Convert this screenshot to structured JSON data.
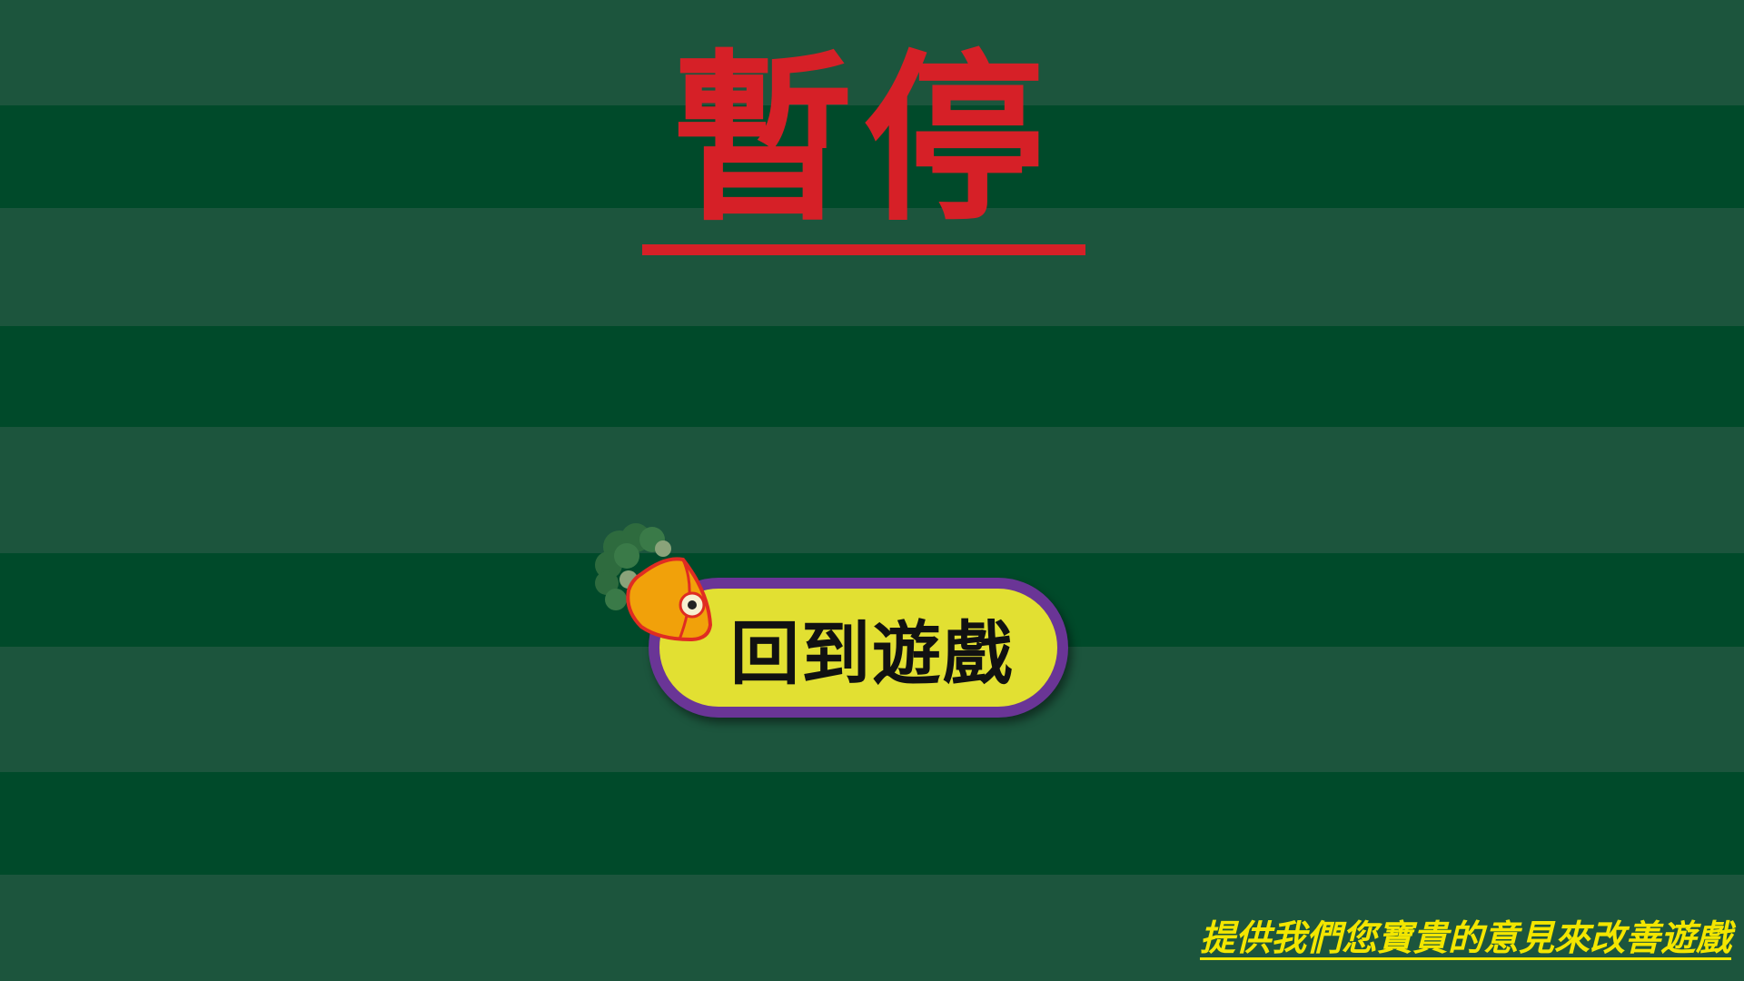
{
  "pause_screen": {
    "title": "暫停",
    "resume_button": {
      "label": "回到遊戲",
      "icon": "carrot-icon"
    },
    "feedback_link": "提供我們您寶貴的意見來改善遊戲"
  },
  "colors": {
    "stripe_light": "#1c553d",
    "stripe_dark": "#004a2a",
    "title_red": "#d62027",
    "button_fill": "#e2e032",
    "button_border": "#6a3596",
    "feedback_yellow": "#f3e600",
    "carrot_orange": "#f1a10a",
    "carrot_outline": "#e02c22",
    "carrot_leaf": "#2e6b3e"
  }
}
